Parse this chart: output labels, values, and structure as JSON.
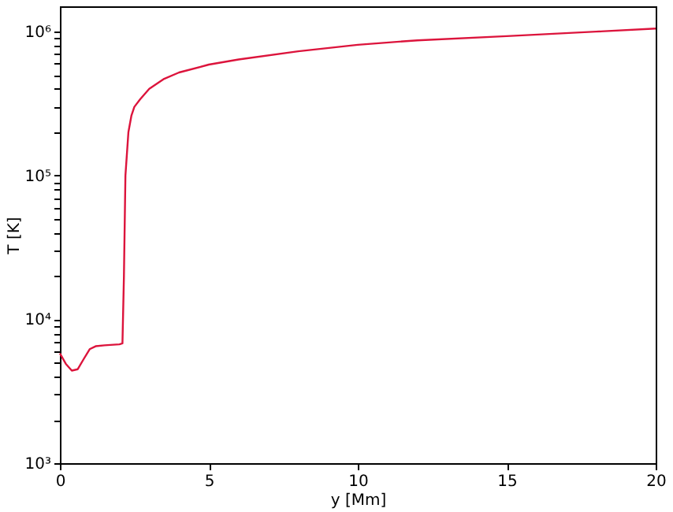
{
  "chart_data": {
    "type": "line",
    "xlabel": "y [Mm]",
    "ylabel": "T [K]",
    "log": "y",
    "grid": false,
    "marker": "none",
    "line_style": "solid",
    "xlim": [
      0,
      20
    ],
    "xticks": [
      0,
      5,
      10,
      15,
      20
    ],
    "ylim": [
      1000,
      1500000
    ],
    "yticks": [
      {
        "value": 1000,
        "label": "10³"
      },
      {
        "value": 2000,
        "label": null
      },
      {
        "value": 3000,
        "label": null
      },
      {
        "value": 4000,
        "label": null
      },
      {
        "value": 5000,
        "label": null
      },
      {
        "value": 6000,
        "label": null
      },
      {
        "value": 7000,
        "label": null
      },
      {
        "value": 8000,
        "label": null
      },
      {
        "value": 9000,
        "label": null
      },
      {
        "value": 10000,
        "label": "10⁴"
      },
      {
        "value": 20000,
        "label": null
      },
      {
        "value": 30000,
        "label": null
      },
      {
        "value": 40000,
        "label": null
      },
      {
        "value": 50000,
        "label": null
      },
      {
        "value": 60000,
        "label": null
      },
      {
        "value": 70000,
        "label": null
      },
      {
        "value": 80000,
        "label": null
      },
      {
        "value": 90000,
        "label": null
      },
      {
        "value": 100000,
        "label": "10⁵"
      },
      {
        "value": 200000,
        "label": null
      },
      {
        "value": 300000,
        "label": null
      },
      {
        "value": 400000,
        "label": null
      },
      {
        "value": 500000,
        "label": null
      },
      {
        "value": 600000,
        "label": null
      },
      {
        "value": 700000,
        "label": null
      },
      {
        "value": 800000,
        "label": null
      },
      {
        "value": 900000,
        "label": null
      },
      {
        "value": 1000000,
        "label": "10⁶"
      }
    ],
    "x": [
      0,
      0.2,
      0.4,
      0.6,
      0.8,
      1.0,
      1.2,
      1.5,
      2.0,
      2.1,
      2.15,
      2.2,
      2.3,
      2.4,
      2.5,
      2.7,
      3,
      3.5,
      4,
      5,
      6,
      8,
      10,
      12,
      15,
      18,
      20
    ],
    "series": [
      {
        "color": "#dc143c",
        "values": [
          5800,
          4900,
          4400,
          4500,
          5300,
          6200,
          6500,
          6600,
          6700,
          6800,
          20000,
          100000,
          200000,
          260000,
          300000,
          340000,
          400000,
          470000,
          520000,
          590000,
          640000,
          730000,
          810000,
          870000,
          930000,
          1000000,
          1050000
        ]
      }
    ]
  }
}
